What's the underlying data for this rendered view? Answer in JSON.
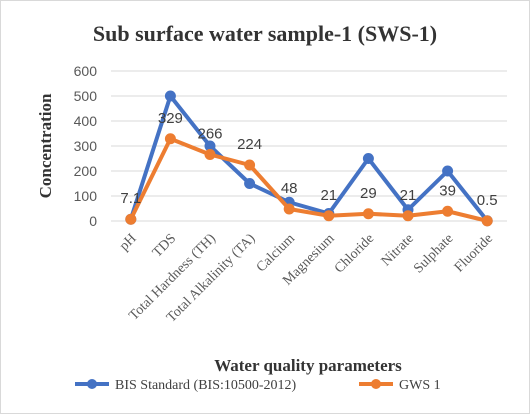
{
  "chart_data": {
    "type": "line",
    "title": "Sub surface water sample-1 (SWS-1)",
    "xlabel": "Water quality parameters",
    "ylabel": "Concentration",
    "ylim": [
      0,
      600
    ],
    "yticks": [
      0,
      100,
      200,
      300,
      400,
      500,
      600
    ],
    "grid": true,
    "legend": "bottom",
    "categories": [
      "pH",
      "TDS",
      "Total Hardness (TH)",
      "Total Alkalinity (TA)",
      "Calcium",
      "Magnesium",
      "Chloride",
      "Nitrate",
      "Sulphate",
      "Fluoride"
    ],
    "series": [
      {
        "name": "BIS Standard (BIS:10500-2012)",
        "color": "#4472C4",
        "values": [
          7,
          500,
          300,
          150,
          75,
          30,
          250,
          45,
          200,
          1
        ]
      },
      {
        "name": "GWS 1",
        "color": "#ED7D31",
        "values": [
          7.1,
          329,
          266,
          224,
          48,
          21,
          29,
          21,
          39,
          0.5
        ],
        "data_labels": [
          "7.1",
          "329",
          "266",
          "224",
          "48",
          "21",
          "29",
          "21",
          "39",
          "0.5"
        ]
      }
    ]
  }
}
